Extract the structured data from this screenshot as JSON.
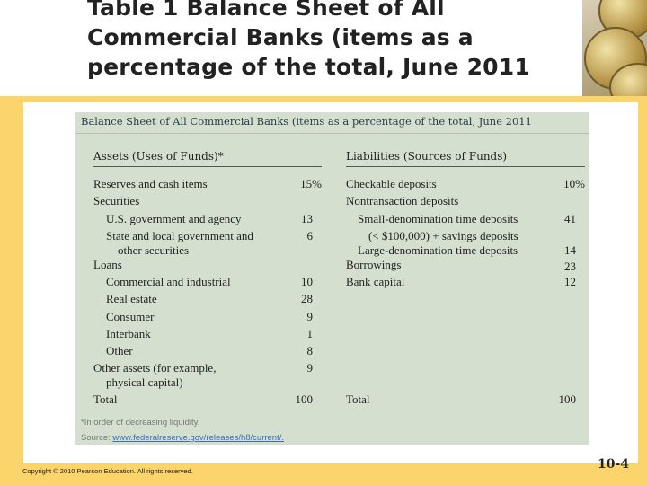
{
  "slide_title": "Table 1  Balance Sheet of All Commercial Banks (items as a percentage of the total, June 2011",
  "table_caption": "Balance Sheet of All Commercial Banks (items as a percentage of the total, June 2011",
  "assets_header": "Assets (Uses of Funds)*",
  "liabilities_header": "Liabilities (Sources of Funds)",
  "assets": [
    {
      "label": "Reserves and cash items",
      "value": "15%"
    },
    {
      "label": "Securities",
      "value": ""
    },
    {
      "label": "U.S. government and agency",
      "value": "13"
    },
    {
      "label": "State and local government and",
      "value": "6"
    },
    {
      "label": "other securities",
      "value": ""
    },
    {
      "label": "Loans",
      "value": ""
    },
    {
      "label": "Commercial and industrial",
      "value": "10"
    },
    {
      "label": "Real estate",
      "value": "28"
    },
    {
      "label": "Consumer",
      "value": "9"
    },
    {
      "label": "Interbank",
      "value": "1"
    },
    {
      "label": "Other",
      "value": "8"
    },
    {
      "label": "Other assets (for example,",
      "value": "9"
    },
    {
      "label": "physical capital)",
      "value": ""
    }
  ],
  "assets_total": {
    "label": "Total",
    "value": "100"
  },
  "liabilities": [
    {
      "label": "Checkable deposits",
      "value": "10%"
    },
    {
      "label": "Nontransaction deposits",
      "value": ""
    },
    {
      "label": "Small-denomination time deposits",
      "value": "41"
    },
    {
      "label": "(< $100,000) + savings deposits",
      "value": ""
    },
    {
      "label": "Large-denomination time deposits",
      "value": "14"
    },
    {
      "label": "Borrowings",
      "value": "23"
    },
    {
      "label": "Bank capital",
      "value": "12"
    }
  ],
  "liabilities_total": {
    "label": "Total",
    "value": "100"
  },
  "footnote": "*In order of decreasing liquidity.",
  "source_prefix": "Source: ",
  "source_link": "www.federalreserve.gov/releases/h8/current/.",
  "copyright": "Copyright © 2010 Pearson Education. All rights reserved.",
  "slide_number": "10-4"
}
